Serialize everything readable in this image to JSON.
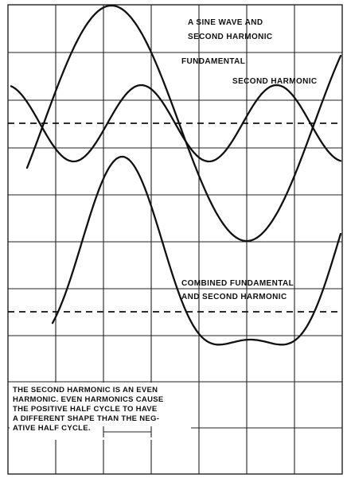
{
  "title_lines": [
    "A  SINE WAVE  AND",
    "SECOND  HARMONIC"
  ],
  "labels": {
    "fundamental": "FUNDAMENTAL",
    "second_harmonic": "SECOND HARMONIC",
    "combined_line1": "COMBINED FUNDAMENTAL",
    "combined_line2": "AND SECOND HARMONIC"
  },
  "note_lines": [
    "THE SECOND HARMONIC IS AN EVEN",
    "HARMONIC. EVEN HARMONICS CAUSE",
    "THE POSITIVE HALF CYCLE TO HAVE",
    "A DIFFERENT SHAPE THAN THE NEG-",
    "ATIVE HALF CYCLE."
  ]
}
